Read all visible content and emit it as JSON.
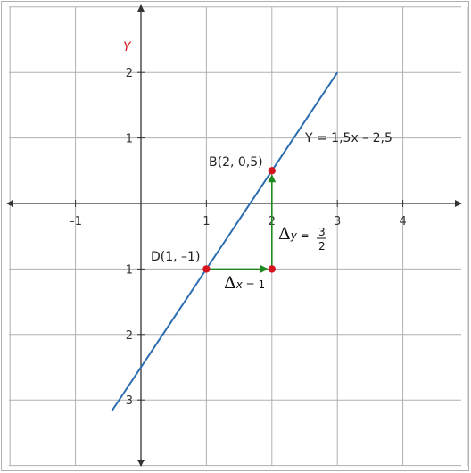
{
  "chart_data": {
    "type": "line",
    "title": "",
    "xlabel": "",
    "ylabel": "Y",
    "xlim": [
      -2,
      5
    ],
    "ylim": [
      -4,
      3
    ],
    "grid": true,
    "x_ticks": [
      {
        "value": -1,
        "label": "–1"
      },
      {
        "value": 1,
        "label": "1"
      },
      {
        "value": 2,
        "label": "2"
      },
      {
        "value": 3,
        "label": "3"
      },
      {
        "value": 4,
        "label": "4"
      }
    ],
    "y_ticks": [
      {
        "value": 2,
        "label": "2"
      },
      {
        "value": 1,
        "label": "1"
      },
      {
        "value": -1,
        "label": "1"
      },
      {
        "value": -2,
        "label": "2"
      },
      {
        "value": -3,
        "label": "3"
      }
    ],
    "series": [
      {
        "name": "Y = 1,5x – 2,5",
        "slope": 1.5,
        "intercept": -2.5,
        "x": [
          -0.45,
          3
        ],
        "y": [
          -3.175,
          2
        ],
        "color": "#2a6db0"
      }
    ],
    "points": [
      {
        "name": "B(2, 0,5)",
        "x": 2,
        "y": 0.5,
        "color": "#d4141f"
      },
      {
        "name": "D(1, –1)",
        "x": 1,
        "y": -1,
        "color": "#d4141f"
      },
      {
        "name": "",
        "x": 2,
        "y": -1,
        "color": "#d4141f"
      }
    ],
    "annotations": {
      "equation": "Y = 1,5x – 2,5",
      "delta_x": {
        "symbol": "Δ",
        "var": "x",
        "rest": " = 1"
      },
      "delta_y": {
        "symbol": "Δ",
        "var": "y",
        "rest": " =",
        "numerator": "3",
        "denominator": "2"
      }
    },
    "arrow_color": "#1e8a1e",
    "axis_label_color": "#d4141f"
  }
}
